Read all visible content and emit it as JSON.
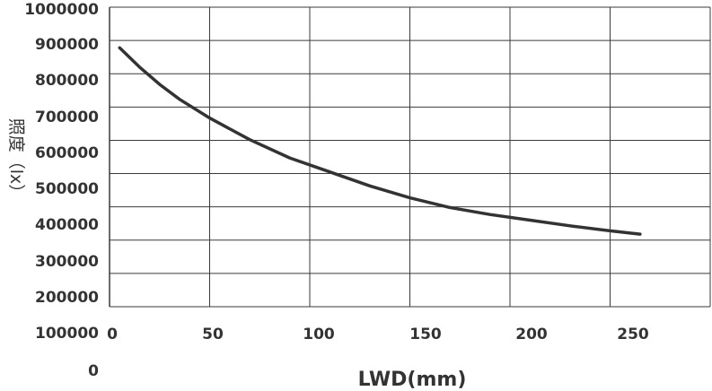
{
  "chart_data": {
    "type": "line",
    "title": "",
    "xlabel": "LWD(mm)",
    "ylabel": "照度（lx）",
    "xlim": [
      0,
      300
    ],
    "ylim": [
      0,
      1000000
    ],
    "x_tick_labels": [
      "0",
      "50",
      "100",
      "150",
      "200",
      "250"
    ],
    "y_tick_labels": [
      "1000000",
      "900000",
      "800000",
      "700000",
      "600000",
      "500000",
      "400000",
      "300000",
      "200000",
      "100000",
      "0"
    ],
    "grid": true,
    "series": [
      {
        "color": "#333333",
        "x": [
          5,
          15,
          25,
          35,
          50,
          70,
          90,
          110,
          130,
          150,
          170,
          190,
          210,
          230,
          250,
          265
        ],
        "y": [
          878000,
          820000,
          768000,
          723000,
          667000,
          602000,
          547000,
          505000,
          463000,
          427000,
          398000,
          377000,
          360000,
          343000,
          328000,
          318000
        ]
      }
    ]
  }
}
